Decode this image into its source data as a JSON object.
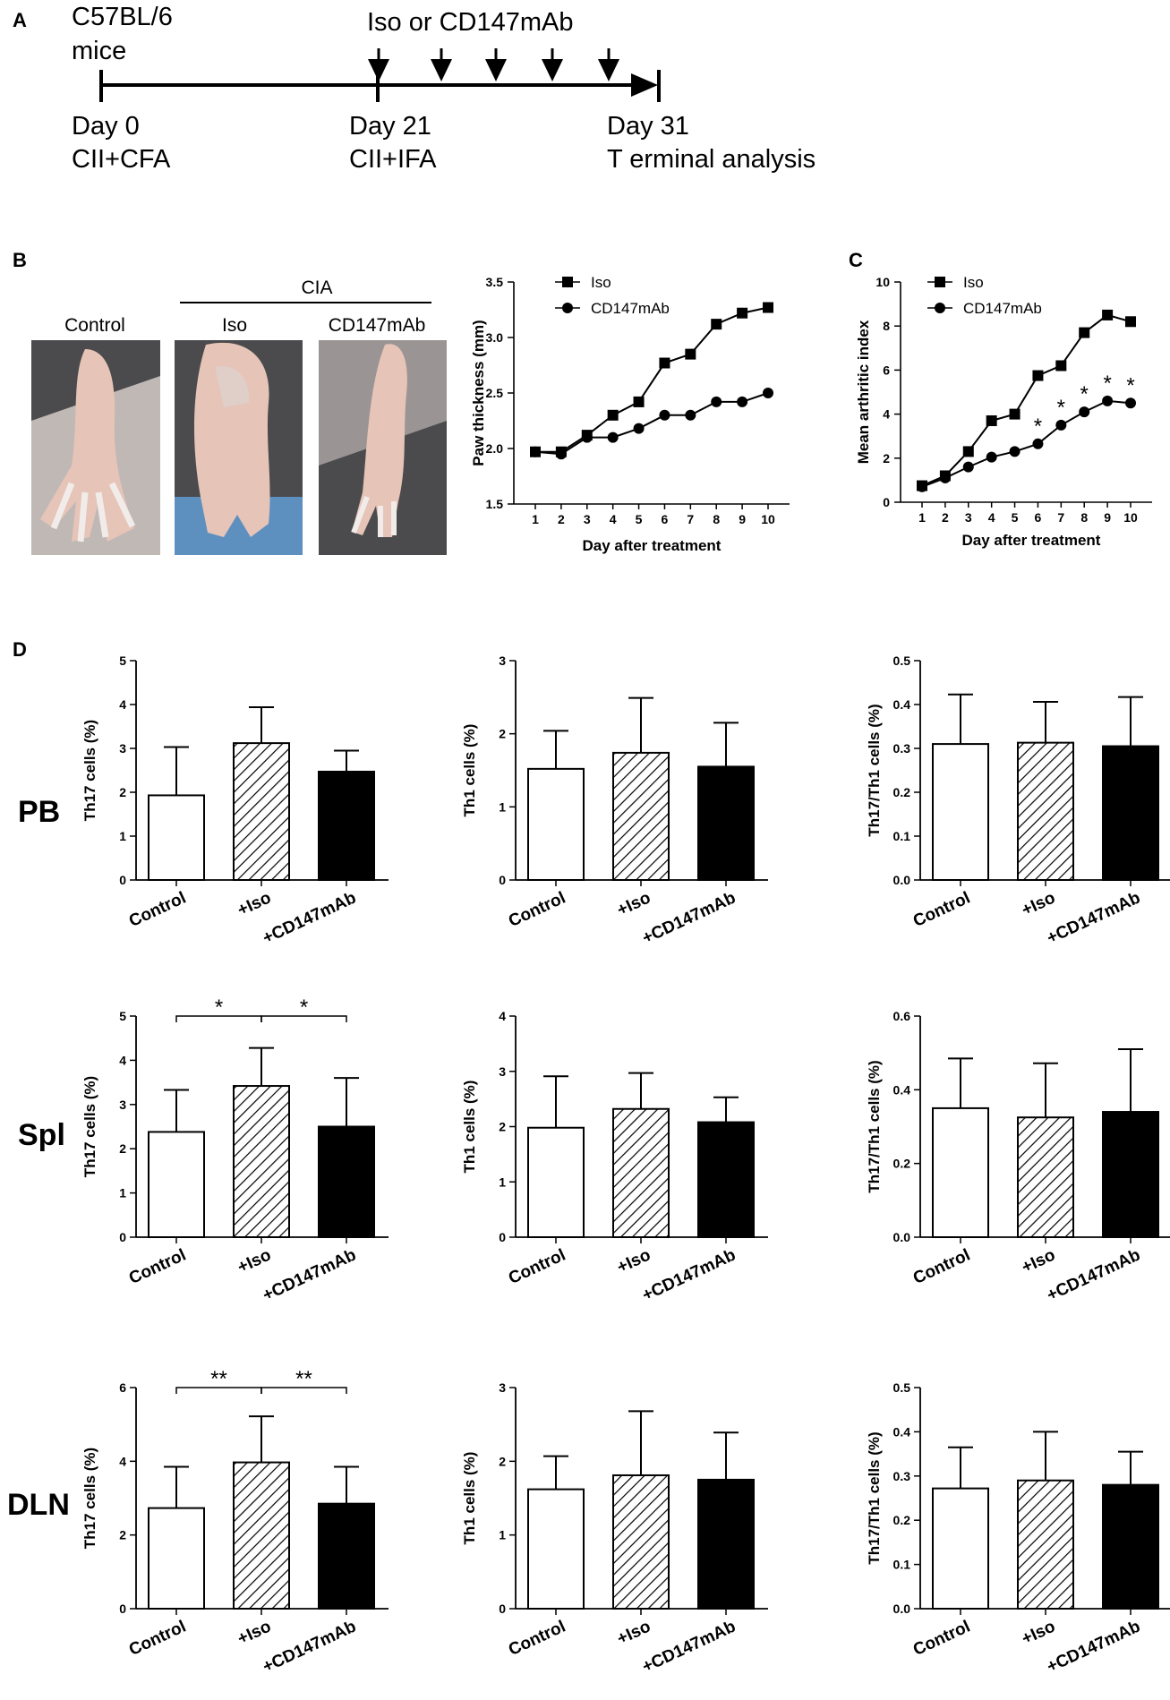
{
  "panels": {
    "a": "A",
    "b": "B",
    "c": "C",
    "d": "D"
  },
  "timeline": {
    "mice_line1": "C57BL/6",
    "mice_line2": "mice",
    "treatment": "Iso or CD147mAb",
    "day0": "Day 0",
    "day0_sub": "CII+CFA",
    "day21": "Day 21",
    "day21_sub": "CII+IFA",
    "day31": "Day 31",
    "day31_sub": "T erminal analysis"
  },
  "photos": {
    "group": "CIA",
    "labels": [
      "Control",
      "Iso",
      "CD147mAb"
    ],
    "colors": {
      "skin": "#e6c4b8",
      "pale": "#ddd3cf",
      "fur": "#4b4b4d",
      "blue": "#5d8fbf",
      "toe": "#f1ecea"
    }
  },
  "colors": {
    "axis": "#000000",
    "bar_open": "#ffffff",
    "bar_solid": "#000000"
  },
  "chart_data": [
    {
      "type": "line",
      "id": "paw",
      "xlabel": "Day after treatment",
      "ylabel": "Paw thickness (mm)",
      "ylim": [
        1.5,
        3.5
      ],
      "yticks": [
        "1.5",
        "2.0",
        "2.5",
        "3.0",
        "3.5"
      ],
      "x": [
        1,
        2,
        3,
        4,
        5,
        6,
        7,
        8,
        9,
        10
      ],
      "series": [
        {
          "name": "Iso",
          "marker": "square",
          "values": [
            1.97,
            1.97,
            2.12,
            2.3,
            2.42,
            2.77,
            2.85,
            3.12,
            3.22,
            3.27
          ]
        },
        {
          "name": "CD147mAb",
          "marker": "circle",
          "values": [
            1.97,
            1.95,
            2.1,
            2.1,
            2.18,
            2.3,
            2.3,
            2.42,
            2.42,
            2.5
          ]
        }
      ],
      "annotations": []
    },
    {
      "type": "line",
      "id": "index",
      "xlabel": "Day after treatment",
      "ylabel": "Mean arthritic index",
      "ylim": [
        0,
        10
      ],
      "yticks": [
        "0",
        "2",
        "4",
        "6",
        "8",
        "10"
      ],
      "x": [
        1,
        2,
        3,
        4,
        5,
        6,
        7,
        8,
        9,
        10
      ],
      "series": [
        {
          "name": "Iso",
          "marker": "square",
          "values": [
            0.75,
            1.2,
            2.3,
            3.7,
            4.0,
            5.75,
            6.2,
            7.7,
            8.5,
            8.2
          ]
        },
        {
          "name": "CD147mAb",
          "marker": "circle",
          "values": [
            0.7,
            1.1,
            1.6,
            2.05,
            2.3,
            2.65,
            3.5,
            4.1,
            4.6,
            4.5
          ]
        }
      ],
      "annotations": [
        {
          "x": 6,
          "text": "*"
        },
        {
          "x": 7,
          "text": "*"
        },
        {
          "x": 8,
          "text": "*"
        },
        {
          "x": 9,
          "text": "*"
        },
        {
          "x": 10,
          "text": "*"
        }
      ]
    }
  ],
  "bar_categories": [
    "Control",
    "+Iso",
    "+CD147mAb"
  ],
  "bar_rows": [
    {
      "label": "PB",
      "charts": [
        {
          "type": "bar",
          "ylabel": "Th17 cells (%)",
          "ylim": [
            0,
            5
          ],
          "yticks": [
            "0",
            "1",
            "2",
            "3",
            "4",
            "5"
          ],
          "values": [
            1.93,
            3.12,
            2.47
          ],
          "errors": [
            1.1,
            0.82,
            0.48
          ],
          "sig": []
        },
        {
          "type": "bar",
          "ylabel": "Th1 cells (%)",
          "ylim": [
            0,
            3
          ],
          "yticks": [
            "0",
            "1",
            "2",
            "3"
          ],
          "values": [
            1.52,
            1.74,
            1.55
          ],
          "errors": [
            0.52,
            0.75,
            0.6
          ],
          "sig": []
        },
        {
          "type": "bar",
          "ylabel": "Th17/Th1 cells (%)",
          "ylim": [
            0,
            0.5
          ],
          "yticks": [
            "0.0",
            "0.1",
            "0.2",
            "0.3",
            "0.4",
            "0.5"
          ],
          "values": [
            0.31,
            0.313,
            0.305
          ],
          "errors": [
            0.113,
            0.093,
            0.112
          ],
          "sig": []
        }
      ]
    },
    {
      "label": "Spl",
      "charts": [
        {
          "type": "bar",
          "ylabel": "Th17 cells (%)",
          "ylim": [
            0,
            5
          ],
          "yticks": [
            "0",
            "1",
            "2",
            "3",
            "4",
            "5"
          ],
          "values": [
            2.38,
            3.42,
            2.5
          ],
          "errors": [
            0.95,
            0.86,
            1.1
          ],
          "sig": [
            {
              "from": 0,
              "to": 1,
              "text": "*"
            },
            {
              "from": 1,
              "to": 2,
              "text": "*"
            }
          ]
        },
        {
          "type": "bar",
          "ylabel": "Th1 cells (%)",
          "ylim": [
            0,
            4
          ],
          "yticks": [
            "0",
            "1",
            "2",
            "3",
            "4"
          ],
          "values": [
            1.98,
            2.32,
            2.08
          ],
          "errors": [
            0.93,
            0.65,
            0.45
          ],
          "sig": []
        },
        {
          "type": "bar",
          "ylabel": "Th17/Th1 cells (%)",
          "ylim": [
            0,
            0.6
          ],
          "yticks": [
            "0.0",
            "0.2",
            "0.4",
            "0.6"
          ],
          "values": [
            0.35,
            0.325,
            0.34
          ],
          "errors": [
            0.135,
            0.147,
            0.17
          ],
          "sig": []
        }
      ]
    },
    {
      "label": "DLN",
      "charts": [
        {
          "type": "bar",
          "ylabel": "Th17 cells (%)",
          "ylim": [
            0,
            6
          ],
          "yticks": [
            "0",
            "2",
            "4",
            "6"
          ],
          "values": [
            2.73,
            3.97,
            2.85
          ],
          "errors": [
            1.12,
            1.25,
            1.0
          ],
          "sig": [
            {
              "from": 0,
              "to": 1,
              "text": "**"
            },
            {
              "from": 1,
              "to": 2,
              "text": "**"
            }
          ]
        },
        {
          "type": "bar",
          "ylabel": "Th1 cells (%)",
          "ylim": [
            0,
            3
          ],
          "yticks": [
            "0",
            "1",
            "2",
            "3"
          ],
          "values": [
            1.62,
            1.81,
            1.75
          ],
          "errors": [
            0.45,
            0.87,
            0.64
          ],
          "sig": []
        },
        {
          "type": "bar",
          "ylabel": "Th17/Th1 cells (%)",
          "ylim": [
            0,
            0.5
          ],
          "yticks": [
            "0.0",
            "0.1",
            "0.2",
            "0.3",
            "0.4",
            "0.5"
          ],
          "values": [
            0.272,
            0.29,
            0.28
          ],
          "errors": [
            0.093,
            0.11,
            0.075
          ],
          "sig": []
        }
      ]
    }
  ]
}
